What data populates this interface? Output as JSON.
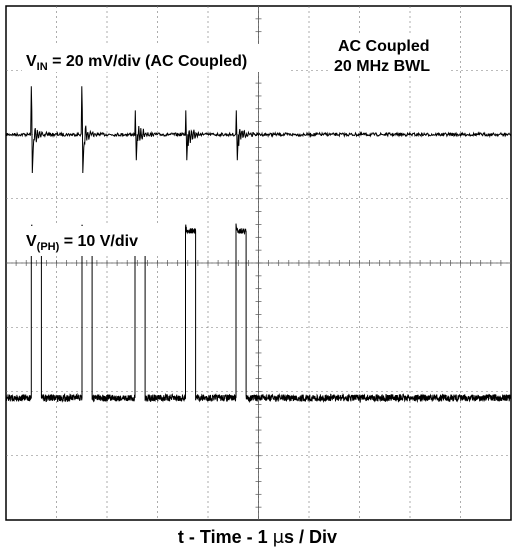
{
  "chart_data": {
    "type": "line",
    "grid": true,
    "xdivisions": 10,
    "ydivisions": 8,
    "xlabel": {
      "pre": "t - Time - 1 ",
      "mu": "μ",
      "post": "s / Div"
    },
    "annotations": {
      "vin": {
        "v": "V",
        "sub": "IN",
        "rest": " = 20 mV/div (AC Coupled)"
      },
      "vph": {
        "v": "V",
        "sub": "(PH)",
        "rest": " = 10 V/div"
      },
      "coupling_line1": "AC Coupled",
      "coupling_line2": "20 MHz BWL"
    },
    "time_unit": "μs",
    "series": [
      {
        "channel": "vin",
        "ac_coupled": true,
        "baseline_div": 2,
        "spike_times_us": [
          0.5,
          1.5,
          2.55,
          3.55,
          4.55
        ],
        "spike_amplitude_div": 0.75,
        "ringing_div": 0.15
      },
      {
        "channel": "vph",
        "ac_coupled": false,
        "period_us": 1.02,
        "pulse_starts_us": [
          0.5,
          1.5,
          2.55,
          3.55,
          4.55
        ],
        "pulse_width_us": 0.2,
        "low_level_div": 6.1,
        "high_level_div": 3.5,
        "overshoot_div": 0.08
      }
    ]
  }
}
